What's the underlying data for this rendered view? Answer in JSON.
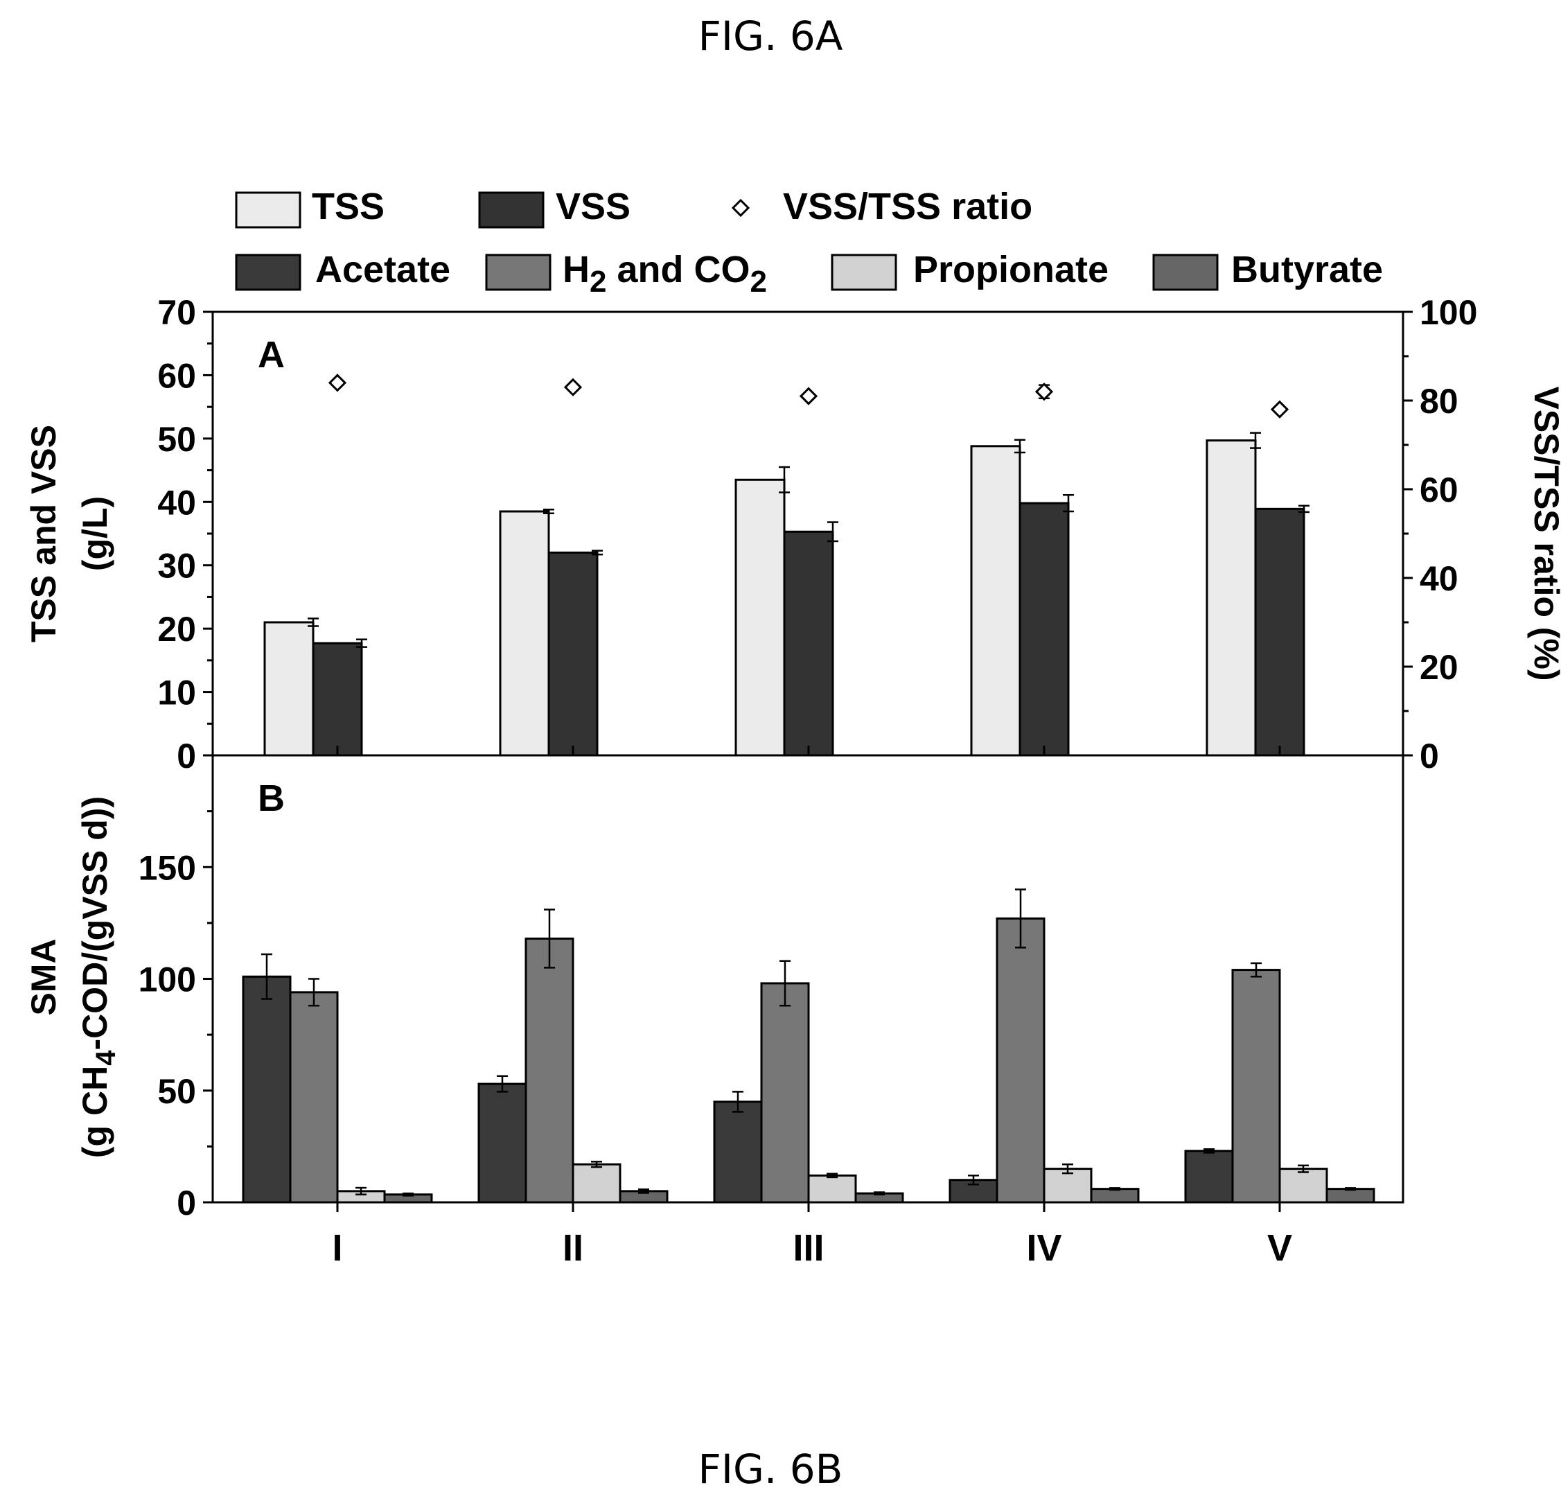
{
  "figure": {
    "label_top": "FIG. 6A",
    "label_bottom": "FIG. 6B"
  },
  "legend": {
    "row1": [
      {
        "label": "TSS",
        "color": "#ebebeb",
        "kind": "box"
      },
      {
        "label": "VSS",
        "color": "#333333",
        "kind": "box"
      },
      {
        "label": "VSS/TSS ratio",
        "color": "#ffffff",
        "kind": "diamond"
      }
    ],
    "row2": [
      {
        "label": "Acetate",
        "color": "#3a3a3a",
        "kind": "box"
      },
      {
        "label": "H",
        "sub": "2",
        "label_rest": " and CO",
        "sub2": "2",
        "color": "#777777",
        "kind": "box"
      },
      {
        "label": "Propionate",
        "color": "#d2d2d2",
        "kind": "box"
      },
      {
        "label": "Butyrate",
        "color": "#666666",
        "kind": "box"
      }
    ]
  },
  "chart_data": [
    {
      "panel": "A",
      "type": "bar",
      "categories": [
        "I",
        "II",
        "III",
        "IV",
        "V"
      ],
      "ylabel_line1": "TSS and VSS",
      "ylabel_line2": "(g/L)",
      "ylim": [
        0,
        70
      ],
      "yticks": [
        0,
        10,
        20,
        30,
        40,
        50,
        60,
        70
      ],
      "y2label": "VSS/TSS ratio (%)",
      "y2lim": [
        0,
        100
      ],
      "y2ticks": [
        0,
        20,
        40,
        60,
        80,
        100
      ],
      "series": [
        {
          "name": "TSS",
          "color": "#ebebeb",
          "values": [
            21.0,
            38.5,
            43.5,
            48.8,
            49.7
          ],
          "errors": [
            0.6,
            0.3,
            2.0,
            1.0,
            1.2
          ]
        },
        {
          "name": "VSS",
          "color": "#333333",
          "values": [
            17.7,
            32.0,
            35.3,
            39.8,
            38.9
          ],
          "errors": [
            0.6,
            0.3,
            1.5,
            1.3,
            0.5
          ]
        }
      ],
      "ratio_series": {
        "name": "VSS/TSS ratio",
        "values": [
          84,
          83,
          81,
          82,
          78
        ],
        "errors": [
          0.5,
          0.5,
          0.5,
          1.5,
          0.5
        ]
      }
    },
    {
      "panel": "B",
      "type": "bar",
      "categories": [
        "I",
        "II",
        "III",
        "IV",
        "V"
      ],
      "ylabel_line1": "SMA",
      "ylabel_line2_pre": "(g CH",
      "ylabel_line2_sub": "4",
      "ylabel_line2_post": "-COD/(gVSS d))",
      "ylim": [
        0,
        200
      ],
      "yticks": [
        0,
        50,
        100,
        150
      ],
      "series": [
        {
          "name": "Acetate",
          "color": "#3a3a3a",
          "values": [
            101,
            53,
            45,
            10,
            23
          ],
          "errors": [
            10,
            3.5,
            4.5,
            2,
            0.8
          ]
        },
        {
          "name": "H2 and CO2",
          "color": "#777777",
          "values": [
            94,
            118,
            98,
            127,
            104
          ],
          "errors": [
            6,
            13,
            10,
            13,
            3
          ]
        },
        {
          "name": "Propionate",
          "color": "#d2d2d2",
          "values": [
            5,
            17,
            12,
            15,
            15
          ],
          "errors": [
            1.5,
            1.2,
            0.8,
            2,
            1.5
          ]
        },
        {
          "name": "Butyrate",
          "color": "#666666",
          "values": [
            3.5,
            5,
            4,
            6,
            6
          ],
          "errors": [
            0.5,
            0.8,
            0.5,
            0.4,
            0.4
          ]
        }
      ]
    }
  ],
  "panel_letters": {
    "a": "A",
    "b": "B"
  }
}
